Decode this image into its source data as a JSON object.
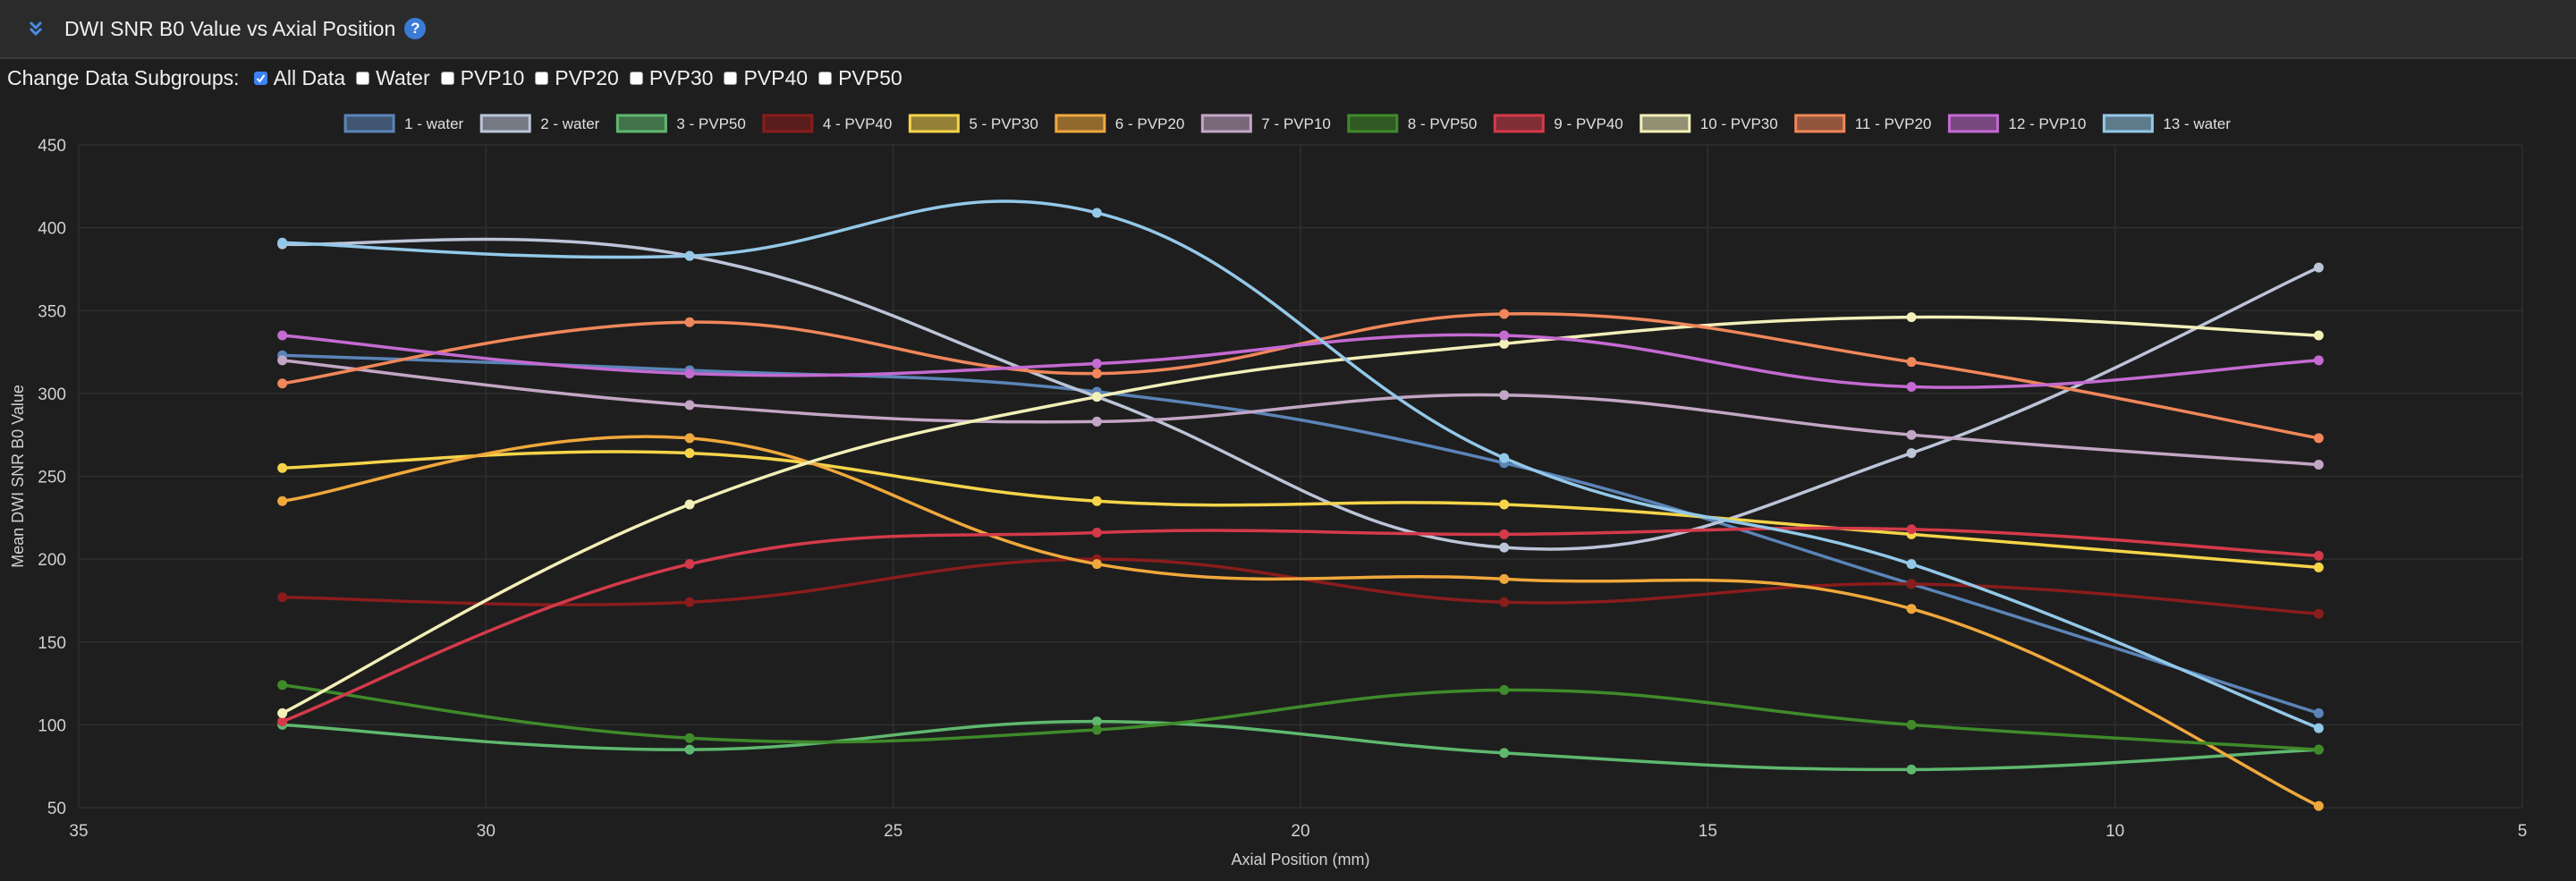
{
  "header": {
    "title": "DWI SNR B0 Value vs Axial Position",
    "help": "?"
  },
  "subgroups": {
    "label": "Change Data Subgroups:",
    "options": [
      {
        "label": "All Data",
        "checked": true
      },
      {
        "label": "Water",
        "checked": false
      },
      {
        "label": "PVP10",
        "checked": false
      },
      {
        "label": "PVP20",
        "checked": false
      },
      {
        "label": "PVP30",
        "checked": false
      },
      {
        "label": "PVP40",
        "checked": false
      },
      {
        "label": "PVP50",
        "checked": false
      }
    ]
  },
  "chart_data": {
    "type": "line",
    "title": "DWI SNR B0 Value vs Axial Position",
    "xlabel": "Axial Position (mm)",
    "ylabel": "Mean DWI SNR B0 Value",
    "xlim": [
      35,
      5
    ],
    "ylim": [
      50,
      450
    ],
    "xticks": [
      35,
      30,
      25,
      20,
      15,
      10,
      5
    ],
    "yticks": [
      50,
      100,
      150,
      200,
      250,
      300,
      350,
      400,
      450
    ],
    "x": [
      32.5,
      27.5,
      22.5,
      17.5,
      12.5,
      7.5
    ],
    "legend_position": "top",
    "series": [
      {
        "name": "1 - water",
        "color": "#5b84b8",
        "values": [
          323,
          314,
          301,
          258,
          185,
          107
        ]
      },
      {
        "name": "2 - water",
        "color": "#bcc4d8",
        "values": [
          390,
          383,
          298,
          207,
          264,
          376
        ]
      },
      {
        "name": "3 - PVP50",
        "color": "#5fb86f",
        "values": [
          100,
          85,
          102,
          83,
          73,
          85
        ]
      },
      {
        "name": "4 - PVP40",
        "color": "#8a1c1c",
        "values": [
          177,
          174,
          200,
          174,
          185,
          167
        ]
      },
      {
        "name": "5 - PVP30",
        "color": "#f5d44a",
        "values": [
          255,
          264,
          235,
          233,
          215,
          195
        ]
      },
      {
        "name": "6 - PVP20",
        "color": "#f0a83c",
        "values": [
          235,
          273,
          197,
          188,
          170,
          51
        ]
      },
      {
        "name": "7 - PVP10",
        "color": "#c3a6c6",
        "values": [
          320,
          293,
          283,
          299,
          275,
          257
        ]
      },
      {
        "name": "8 - PVP50",
        "color": "#3f8a2a",
        "values": [
          124,
          92,
          97,
          121,
          100,
          85
        ]
      },
      {
        "name": "9 - PVP40",
        "color": "#d43a4a",
        "values": [
          102,
          197,
          216,
          215,
          218,
          202
        ]
      },
      {
        "name": "10 - PVP30",
        "color": "#f2efb8",
        "values": [
          107,
          233,
          298,
          330,
          346,
          335
        ]
      },
      {
        "name": "11 - PVP20",
        "color": "#f0875a",
        "values": [
          306,
          343,
          312,
          348,
          319,
          273
        ]
      },
      {
        "name": "12 - PVP10",
        "color": "#c46ad2",
        "values": [
          335,
          312,
          318,
          335,
          304,
          320
        ]
      },
      {
        "name": "13 - water",
        "color": "#93c8e8",
        "values": [
          391,
          383,
          409,
          261,
          197,
          98
        ]
      }
    ]
  }
}
